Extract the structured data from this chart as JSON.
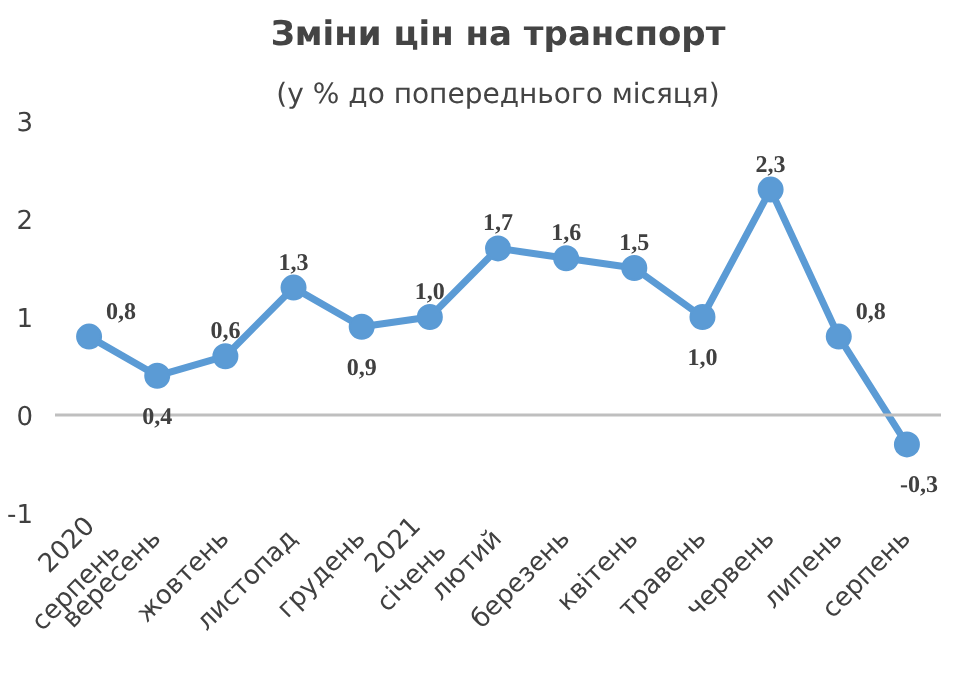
{
  "chart_data": {
    "type": "line",
    "title": "Зміни цін на транспорт",
    "subtitle": "(у % до попереднього місяця)",
    "categories": [
      "2020 серпень",
      "вересень",
      "жовтень",
      "листопад",
      "грудень",
      "2021 січень",
      "лютий",
      "березень",
      "квітень",
      "травень",
      "червень",
      "липень",
      "серпень"
    ],
    "series": [
      {
        "color": "#5b9bd5",
        "values": [
          0.8,
          0.4,
          0.6,
          1.3,
          0.9,
          1.0,
          1.7,
          1.6,
          1.5,
          1.0,
          2.3,
          0.8,
          -0.3
        ],
        "value_labels": [
          "0,8",
          "0,4",
          "0,6",
          "1,3",
          "0,9",
          "1,0",
          "1,7",
          "1,6",
          "1,5",
          "1,0",
          "2,3",
          "0,8",
          "-0,3"
        ]
      }
    ],
    "ylim": [
      -1,
      3
    ],
    "yticks": [
      -1,
      0,
      1,
      2,
      3
    ],
    "ref_lines": [
      {
        "axis": "y",
        "value": 0,
        "color": "#bfbfbf"
      }
    ],
    "marker": "circle",
    "line_style": "solid",
    "grid": false
  }
}
